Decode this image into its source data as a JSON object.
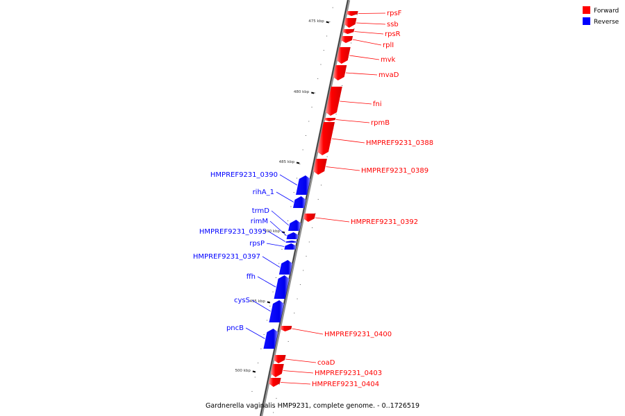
{
  "caption": "Gardnerella vaginalis HMP9231, complete genome. - 0..1726519",
  "legend": {
    "forward": {
      "label": "Forward",
      "color": "#ff0000"
    },
    "reverse": {
      "label": "Reverse",
      "color": "#0000ff"
    }
  },
  "axis": {
    "tick_labels": [
      "475 kbp",
      "480 kbp",
      "485 kbp",
      "490 kbp",
      "495 kbp",
      "500 kbp"
    ]
  },
  "genes": [
    {
      "name": "rpsF",
      "strand": "forward"
    },
    {
      "name": "ssb",
      "strand": "forward"
    },
    {
      "name": "rpsR",
      "strand": "forward"
    },
    {
      "name": "rplI",
      "strand": "forward"
    },
    {
      "name": "mvk",
      "strand": "forward"
    },
    {
      "name": "mvaD",
      "strand": "forward"
    },
    {
      "name": "fni",
      "strand": "forward"
    },
    {
      "name": "rpmB",
      "strand": "forward"
    },
    {
      "name": "HMPREF9231_0388",
      "strand": "forward"
    },
    {
      "name": "HMPREF9231_0389",
      "strand": "forward"
    },
    {
      "name": "HMPREF9231_0390",
      "strand": "reverse"
    },
    {
      "name": "rihA_1",
      "strand": "reverse"
    },
    {
      "name": "HMPREF9231_0392",
      "strand": "forward"
    },
    {
      "name": "trmD",
      "strand": "reverse"
    },
    {
      "name": "rimM",
      "strand": "reverse"
    },
    {
      "name": "HMPREF9231_0395",
      "strand": "reverse"
    },
    {
      "name": "rpsP",
      "strand": "reverse"
    },
    {
      "name": "HMPREF9231_0397",
      "strand": "reverse"
    },
    {
      "name": "ffh",
      "strand": "reverse"
    },
    {
      "name": "cysS",
      "strand": "reverse"
    },
    {
      "name": "pncB",
      "strand": "reverse"
    },
    {
      "name": "HMPREF9231_0400",
      "strand": "forward"
    },
    {
      "name": "coaD",
      "strand": "forward"
    },
    {
      "name": "HMPREF9231_0403",
      "strand": "forward"
    },
    {
      "name": "HMPREF9231_0404",
      "strand": "forward"
    }
  ]
}
